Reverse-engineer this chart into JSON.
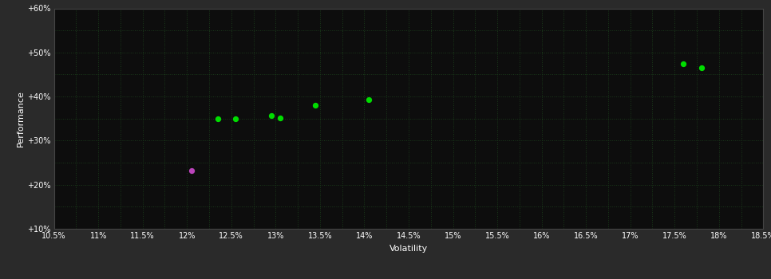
{
  "background_color": "#2a2a2a",
  "plot_bg_color": "#0d0d0d",
  "grid_color": "#1a3a1a",
  "text_color": "#ffffff",
  "xlabel": "Volatility",
  "ylabel": "Performance",
  "xlim": [
    0.105,
    0.185
  ],
  "ylim": [
    0.1,
    0.6
  ],
  "xticks": [
    0.105,
    0.11,
    0.115,
    0.12,
    0.125,
    0.13,
    0.135,
    0.14,
    0.145,
    0.15,
    0.155,
    0.16,
    0.165,
    0.17,
    0.175,
    0.18,
    0.185
  ],
  "xtick_labels": [
    "10.5%",
    "11%",
    "11.5%",
    "12%",
    "12.5%",
    "13%",
    "13.5%",
    "14%",
    "14.5%",
    "15%",
    "15.5%",
    "16%",
    "16.5%",
    "17%",
    "17.5%",
    "18%",
    "18.5%"
  ],
  "yticks": [
    0.1,
    0.2,
    0.3,
    0.4,
    0.5,
    0.6
  ],
  "ytick_labels": [
    "+10%",
    "+20%",
    "+30%",
    "+40%",
    "+50%",
    "+60%"
  ],
  "minor_xticks": [
    0.1075,
    0.1125,
    0.1175,
    0.1225,
    0.1275,
    0.1325,
    0.1375,
    0.1425,
    0.1475,
    0.1525,
    0.1575,
    0.1625,
    0.1675,
    0.1725,
    0.1775,
    0.1825
  ],
  "minor_yticks": [
    0.15,
    0.25,
    0.35,
    0.45,
    0.55
  ],
  "points_green": [
    [
      0.1235,
      0.35
    ],
    [
      0.1255,
      0.349
    ],
    [
      0.1295,
      0.357
    ],
    [
      0.1305,
      0.352
    ],
    [
      0.1345,
      0.381
    ],
    [
      0.1405,
      0.393
    ],
    [
      0.176,
      0.475
    ],
    [
      0.178,
      0.465
    ]
  ],
  "points_magenta": [
    [
      0.1205,
      0.232
    ]
  ],
  "green_color": "#00dd00",
  "magenta_color": "#bb44bb",
  "point_size": 18,
  "figsize": [
    9.66,
    3.5
  ],
  "dpi": 100
}
